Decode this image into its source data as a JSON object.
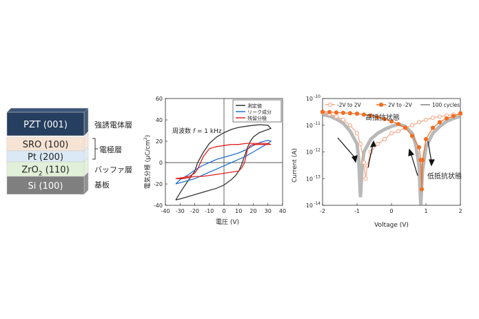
{
  "layer_stack": {
    "layers": [
      {
        "label": "PZT (001)",
        "color": "#263e5f",
        "text_color": "#ffffff"
      },
      {
        "label": "SRO (100)",
        "color": "#f6e3d4",
        "text_color": "#222222"
      },
      {
        "label": "Pt (200)",
        "color": "#dbe9f6",
        "text_color": "#222222"
      },
      {
        "label_main": "ZrO",
        "label_sub": "2",
        "label_rest": " (110)",
        "color": "#e1f0d8",
        "text_color": "#222222"
      },
      {
        "label": "Si (100)",
        "color": "#7f7f7f",
        "text_color": "#ffffff"
      }
    ],
    "annotations": {
      "pzt": "強誘電体層",
      "electrode": "電極層",
      "buffer": "バッファ層",
      "substrate": "基板"
    }
  },
  "chart_data": [
    {
      "type": "line",
      "xlabel": "電圧 (V)",
      "ylabel_main": "電気分極 (μC/cm",
      "ylabel_sup": "2",
      "ylabel_close": ")",
      "xlim": [
        -40,
        40
      ],
      "ylim": [
        -40,
        60
      ],
      "xticks": [
        "-40",
        "-30",
        "-20",
        "-10",
        "0",
        "10",
        "20",
        "30",
        "40"
      ],
      "yticks": [
        "-40",
        "-20",
        "0",
        "20",
        "40",
        "60"
      ],
      "annotation_prefix": "周波数 ",
      "annotation_var": "f",
      "annotation_suffix": " = 1 kHz",
      "grid": false,
      "legend_position": "top-right",
      "series": [
        {
          "name": "測定値",
          "color": "#333333",
          "points": [
            [
              -33,
              -35
            ],
            [
              -30,
              -34
            ],
            [
              -25,
              -32
            ],
            [
              -20,
              -30
            ],
            [
              -15,
              -28
            ],
            [
              -10,
              -26
            ],
            [
              -5,
              -24
            ],
            [
              0,
              -21
            ],
            [
              2,
              -19
            ],
            [
              5,
              -16
            ],
            [
              8,
              -12
            ],
            [
              10,
              -8
            ],
            [
              12,
              -2
            ],
            [
              14,
              6
            ],
            [
              16,
              14
            ],
            [
              18,
              20
            ],
            [
              20,
              24
            ],
            [
              24,
              28
            ],
            [
              28,
              30
            ],
            [
              32,
              32
            ],
            [
              30,
              35
            ],
            [
              25,
              35.5
            ],
            [
              20,
              35
            ],
            [
              15,
              34
            ],
            [
              10,
              33
            ],
            [
              5,
              31
            ],
            [
              0,
              28
            ],
            [
              -5,
              24
            ],
            [
              -10,
              18
            ],
            [
              -14,
              10
            ],
            [
              -18,
              0
            ],
            [
              -20,
              -8
            ],
            [
              -24,
              -16
            ],
            [
              -28,
              -24
            ],
            [
              -33,
              -35
            ]
          ]
        },
        {
          "name": "リーク成分",
          "color": "#1f6fcf",
          "points": [
            [
              -33,
              -20
            ],
            [
              -25,
              -17
            ],
            [
              -20,
              -15
            ],
            [
              -15,
              -12
            ],
            [
              -10,
              -9
            ],
            [
              -5,
              -6
            ],
            [
              0,
              -3
            ],
            [
              5,
              0
            ],
            [
              10,
              3
            ],
            [
              15,
              6
            ],
            [
              20,
              10
            ],
            [
              25,
              14
            ],
            [
              30,
              18
            ],
            [
              32,
              20
            ],
            [
              30,
              21
            ],
            [
              25,
              19
            ],
            [
              20,
              16
            ],
            [
              15,
              12
            ],
            [
              10,
              9
            ],
            [
              5,
              7
            ],
            [
              0,
              5
            ],
            [
              -5,
              3
            ],
            [
              -10,
              0
            ],
            [
              -15,
              -3
            ],
            [
              -20,
              -7
            ],
            [
              -25,
              -12
            ],
            [
              -30,
              -16
            ],
            [
              -33,
              -20
            ]
          ]
        },
        {
          "name": "残留分極",
          "color": "#e02020",
          "points": [
            [
              -33,
              -15
            ],
            [
              -28,
              -15
            ],
            [
              -24,
              -14
            ],
            [
              -20,
              -13
            ],
            [
              -15,
              -13
            ],
            [
              -10,
              -12
            ],
            [
              -5,
              -11
            ],
            [
              0,
              -10
            ],
            [
              5,
              -9
            ],
            [
              10,
              -8
            ],
            [
              12,
              -5
            ],
            [
              14,
              0
            ],
            [
              15,
              6
            ],
            [
              16,
              12
            ],
            [
              18,
              16
            ],
            [
              20,
              17
            ],
            [
              25,
              17
            ],
            [
              30,
              17
            ],
            [
              32,
              17
            ],
            [
              30,
              18
            ],
            [
              25,
              18
            ],
            [
              20,
              18
            ],
            [
              15,
              18
            ],
            [
              10,
              17
            ],
            [
              5,
              17
            ],
            [
              0,
              16
            ],
            [
              -5,
              15
            ],
            [
              -10,
              13
            ],
            [
              -14,
              6
            ],
            [
              -16,
              0
            ],
            [
              -18,
              -6
            ],
            [
              -20,
              -10
            ],
            [
              -24,
              -13
            ],
            [
              -28,
              -14
            ],
            [
              -33,
              -15
            ]
          ]
        }
      ]
    },
    {
      "type": "scatter",
      "xlabel": "Voltage (V)",
      "ylabel": "Current (A)",
      "xlim": [
        -2,
        2
      ],
      "ylim": [
        1e-14,
        1e-10
      ],
      "yscale": "log",
      "xticks": [
        "-2",
        "-1",
        "0",
        "1",
        "2"
      ],
      "ytick_base": "10",
      "ytick_exponents": [
        "-14",
        "-13",
        "-12",
        "-11",
        "-10"
      ],
      "legend_position": "top",
      "grid": false,
      "text_annotations": {
        "high": "高抵抗状態",
        "low": "低抵抗状態"
      },
      "series": [
        {
          "name": "-2V to 2V",
          "color": "#f4a582",
          "marker": "circle-open",
          "points": [
            [
              -2,
              3e-11
            ],
            [
              -1.8,
              2.6e-11
            ],
            [
              -1.6,
              2.1e-11
            ],
            [
              -1.4,
              1.6e-11
            ],
            [
              -1.2,
              1e-11
            ],
            [
              -1.0,
              5e-12
            ],
            [
              -0.9,
              2e-12
            ],
            [
              -0.8,
              4e-13
            ],
            [
              -0.75,
              1e-13
            ],
            [
              -0.7,
              3e-13
            ],
            [
              -0.6,
              1e-12
            ],
            [
              -0.4,
              2e-12
            ],
            [
              -0.2,
              3e-12
            ],
            [
              0,
              5e-12
            ],
            [
              0.2,
              6e-12
            ],
            [
              0.4,
              8e-12
            ],
            [
              0.6,
              1e-11
            ],
            [
              0.8,
              1.3e-11
            ],
            [
              1.0,
              1.6e-11
            ],
            [
              1.2,
              1.9e-11
            ],
            [
              1.4,
              2.1e-11
            ],
            [
              1.6,
              2.3e-11
            ],
            [
              1.8,
              2.5e-11
            ],
            [
              2,
              2.6e-11
            ]
          ]
        },
        {
          "name": "2V to -2V",
          "color": "#f26d21",
          "marker": "circle-filled",
          "points": [
            [
              2,
              2.8e-11
            ],
            [
              1.8,
              2.2e-11
            ],
            [
              1.6,
              1.8e-11
            ],
            [
              1.4,
              1.3e-11
            ],
            [
              1.2,
              8e-12
            ],
            [
              1.0,
              3e-12
            ],
            [
              0.9,
              5e-13
            ],
            [
              0.88,
              4e-14
            ],
            [
              0.85,
              5e-13
            ],
            [
              0.8,
              1.5e-12
            ],
            [
              0.6,
              4e-12
            ],
            [
              0.4,
              8e-12
            ],
            [
              0.2,
              1.1e-11
            ],
            [
              0,
              1.4e-11
            ],
            [
              -0.2,
              1.7e-11
            ],
            [
              -0.4,
              2e-11
            ],
            [
              -0.6,
              2.3e-11
            ],
            [
              -0.8,
              2.5e-11
            ],
            [
              -1.0,
              2.7e-11
            ],
            [
              -1.2,
              2.8e-11
            ],
            [
              -1.4,
              2.9e-11
            ],
            [
              -1.6,
              3e-11
            ],
            [
              -1.8,
              3.1e-11
            ],
            [
              -2,
              3.2e-11
            ]
          ]
        },
        {
          "name": "100 cycles",
          "color": "#808080",
          "marker": "line",
          "points": [
            [
              -2,
              2.5e-11
            ],
            [
              -1.8,
              2.2e-11
            ],
            [
              -1.6,
              1.7e-11
            ],
            [
              -1.4,
              1.2e-11
            ],
            [
              -1.2,
              6e-12
            ],
            [
              -1.0,
              2e-12
            ],
            [
              -0.95,
              5e-13
            ],
            [
              -0.9,
              2e-14
            ],
            [
              -0.85,
              3e-13
            ],
            [
              -0.8,
              1e-12
            ],
            [
              -0.6,
              3e-12
            ],
            [
              -0.4,
              5e-12
            ],
            [
              -0.2,
              7e-12
            ],
            [
              0,
              9e-12
            ],
            [
              0.2,
              1.1e-11
            ],
            [
              0.4,
              9e-12
            ],
            [
              0.6,
              5e-12
            ],
            [
              0.7,
              2e-12
            ],
            [
              0.8,
              3e-13
            ],
            [
              0.85,
              1e-14
            ],
            [
              0.9,
              2e-13
            ],
            [
              1.0,
              1.5e-12
            ],
            [
              1.2,
              5e-12
            ],
            [
              1.4,
              9e-12
            ],
            [
              1.6,
              1.4e-11
            ],
            [
              1.8,
              1.8e-11
            ],
            [
              2,
              2.2e-11
            ]
          ]
        }
      ]
    }
  ]
}
